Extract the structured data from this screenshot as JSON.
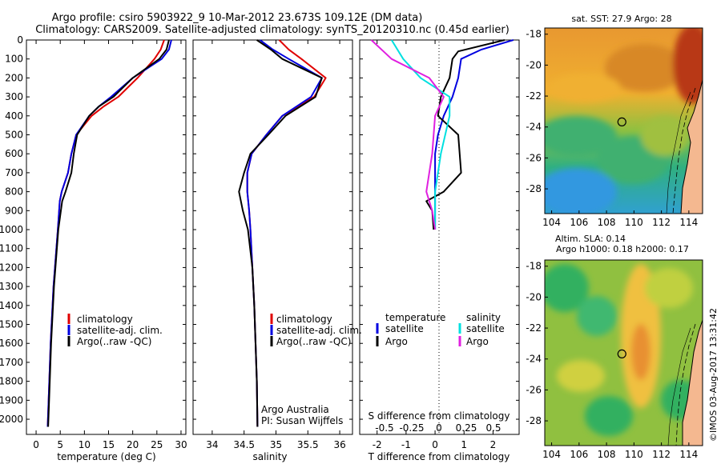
{
  "header": {
    "line1": "Argo profile: csiro 5903922_9 10-Mar-2012 23.673S 109.12E (DM data)",
    "line2": "Climatology: CARS2009. Satellite-adjusted climatology: synTS_20120310.nc (0.45d earlier)"
  },
  "colors": {
    "climatology": "#e00000",
    "satellite": "#0000e0",
    "argo": "#000000",
    "salinity_satellite": "#00e0e0",
    "salinity_argo": "#e020e0"
  },
  "chart_data": [
    {
      "id": "temperature",
      "type": "line",
      "xlabel": "temperature (deg C)",
      "ylabel": "",
      "xlim": [
        -2,
        31
      ],
      "ylim": [
        2080,
        0
      ],
      "xticks": [
        0,
        5,
        10,
        15,
        20,
        25,
        30
      ],
      "yticks": [
        0,
        100,
        200,
        300,
        400,
        500,
        600,
        700,
        800,
        900,
        1000,
        1100,
        1200,
        1300,
        1400,
        1500,
        1600,
        1700,
        1800,
        1900,
        2000
      ],
      "legend": [
        "climatology",
        "satellite-adj. clim.",
        "Argo(..raw -QC)"
      ],
      "series": [
        {
          "name": "climatology",
          "color": "#e00000",
          "x": [
            26.5,
            25.8,
            24.5,
            21,
            17,
            14,
            11.5,
            8.3,
            7.3,
            6.6,
            5.3,
            4.9,
            4.5,
            3.6,
            3.0,
            2.6,
            2.4
          ],
          "y": [
            0,
            50,
            100,
            200,
            300,
            350,
            400,
            500,
            600,
            700,
            800,
            850,
            1000,
            1300,
            1600,
            1900,
            2040
          ]
        },
        {
          "name": "satellite-adj. clim.",
          "color": "#0000e0",
          "x": [
            28,
            27.5,
            26,
            20,
            15.5,
            13,
            11,
            8.3,
            7.3,
            6.6,
            5.3,
            4.9,
            4.5,
            3.6,
            3.0,
            2.6,
            2.4
          ],
          "y": [
            0,
            50,
            100,
            200,
            300,
            350,
            400,
            500,
            600,
            700,
            800,
            850,
            1000,
            1300,
            1600,
            1900,
            2040
          ]
        },
        {
          "name": "Argo(..raw -QC)",
          "color": "#000000",
          "x": [
            27.5,
            27,
            25.5,
            20,
            16,
            13,
            11,
            8.5,
            7.8,
            7.3,
            6.1,
            5.4,
            4.6,
            3.7,
            3.1,
            2.7,
            2.5
          ],
          "y": [
            0,
            50,
            100,
            200,
            300,
            350,
            400,
            500,
            600,
            700,
            800,
            850,
            1000,
            1300,
            1600,
            1900,
            2040
          ]
        }
      ]
    },
    {
      "id": "salinity",
      "type": "line",
      "xlabel": "salinity",
      "xlim": [
        33.7,
        36.2
      ],
      "ylim": [
        2080,
        0
      ],
      "xticks": [
        34,
        34.5,
        35,
        35.5,
        36
      ],
      "legend": [
        "climatology",
        "satellite-adj. clim.",
        "Argo(..raw -QC)"
      ],
      "annotation": [
        "Argo Australia",
        "PI: Susan Wijffels"
      ],
      "series": [
        {
          "name": "climatology",
          "color": "#e00000",
          "x": [
            35.05,
            35.2,
            35.4,
            35.78,
            35.6,
            35.1,
            34.85,
            34.62,
            34.55,
            34.55,
            34.58,
            34.6,
            34.63,
            34.66,
            34.68,
            34.7,
            34.71
          ],
          "y": [
            0,
            50,
            100,
            200,
            300,
            400,
            500,
            600,
            700,
            800,
            900,
            1000,
            1200,
            1400,
            1600,
            1800,
            2040
          ]
        },
        {
          "name": "satellite-adj. clim.",
          "color": "#0000e0",
          "x": [
            34.75,
            34.95,
            35.2,
            35.72,
            35.55,
            35.1,
            34.85,
            34.62,
            34.55,
            34.55,
            34.58,
            34.6,
            34.63,
            34.66,
            34.68,
            34.7,
            34.71
          ],
          "y": [
            0,
            50,
            100,
            200,
            300,
            400,
            500,
            600,
            700,
            800,
            900,
            1000,
            1200,
            1400,
            1600,
            1800,
            2040
          ]
        },
        {
          "name": "Argo(..raw -QC)",
          "color": "#000000",
          "x": [
            34.7,
            34.92,
            35.1,
            35.72,
            35.62,
            35.15,
            34.88,
            34.6,
            34.5,
            34.42,
            34.48,
            34.56,
            34.63,
            34.66,
            34.68,
            34.7,
            34.71
          ],
          "y": [
            0,
            50,
            100,
            200,
            300,
            400,
            500,
            600,
            700,
            800,
            900,
            1000,
            1200,
            1400,
            1600,
            1800,
            2040
          ]
        }
      ]
    },
    {
      "id": "difference",
      "type": "line",
      "xlabel": "T difference from climatology",
      "xlabel_top": "S difference from climatology",
      "xlim": [
        -2.6,
        2.9
      ],
      "ylim": [
        2080,
        0
      ],
      "xticks": [
        -2,
        -1,
        0,
        1,
        2
      ],
      "top_ticks": [
        "-0.5",
        "-0.25",
        "0",
        "0.25",
        "0.5"
      ],
      "legend_left": {
        "title": "temperature",
        "items": [
          "satellite",
          "Argo"
        ]
      },
      "legend_right": {
        "title": "salinity",
        "items": [
          "satellite",
          "Argo"
        ]
      },
      "series": [
        {
          "name": "temperature satellite",
          "color": "#0000e0",
          "x": [
            2.7,
            1.6,
            0.9,
            0.8,
            0.6,
            0.3,
            0.1,
            0.0,
            0.0,
            0.0,
            0.0,
            0.0
          ],
          "y": [
            0,
            50,
            100,
            200,
            300,
            400,
            500,
            600,
            700,
            800,
            900,
            1000
          ]
        },
        {
          "name": "temperature Argo",
          "color": "#000000",
          "x": [
            2.4,
            0.8,
            0.6,
            0.5,
            0.2,
            0.1,
            0.8,
            0.9,
            0.3,
            -0.3,
            -0.1,
            -0.05
          ],
          "y": [
            0,
            60,
            100,
            200,
            300,
            400,
            500,
            700,
            800,
            850,
            900,
            1000
          ]
        },
        {
          "name": "salinity satellite",
          "color": "#00e0e0",
          "x": [
            -1.5,
            -1.1,
            -0.5,
            0.5,
            0.5,
            0.2,
            0.0,
            0.0,
            0.0
          ],
          "y": [
            0,
            100,
            200,
            300,
            400,
            600,
            800,
            900,
            1000
          ]
        },
        {
          "name": "salinity Argo",
          "color": "#e020e0",
          "x": [
            -2.2,
            -1.5,
            -0.2,
            0.3,
            0.0,
            -0.1,
            -0.3,
            -0.1,
            0.0
          ],
          "y": [
            0,
            100,
            200,
            300,
            400,
            600,
            800,
            900,
            1000
          ]
        }
      ]
    },
    {
      "id": "sst_map",
      "type": "heatmap",
      "title": "sat. SST: 27.9  Argo: 28",
      "xlim": [
        103.5,
        115
      ],
      "ylim": [
        -29.6,
        -17.6
      ],
      "xticks": [
        104,
        106,
        108,
        110,
        112,
        114
      ],
      "yticks": [
        -18,
        -20,
        -22,
        -24,
        -26,
        -28
      ],
      "argo_position": [
        109.12,
        -23.673
      ]
    },
    {
      "id": "sla_map",
      "type": "heatmap",
      "title_line1": "Altim. SLA: 0.14",
      "title_line2": "Argo h1000: 0.18  h2000: 0.17",
      "xlim": [
        103.5,
        115
      ],
      "ylim": [
        -29.6,
        -17.6
      ],
      "xticks": [
        104,
        106,
        108,
        110,
        112,
        114
      ],
      "yticks": [
        -18,
        -20,
        -22,
        -24,
        -26,
        -28
      ],
      "argo_position": [
        109.12,
        -23.673
      ]
    }
  ],
  "footer": {
    "stamp": "©IMOS 03-Aug-2017 13:31:42"
  }
}
